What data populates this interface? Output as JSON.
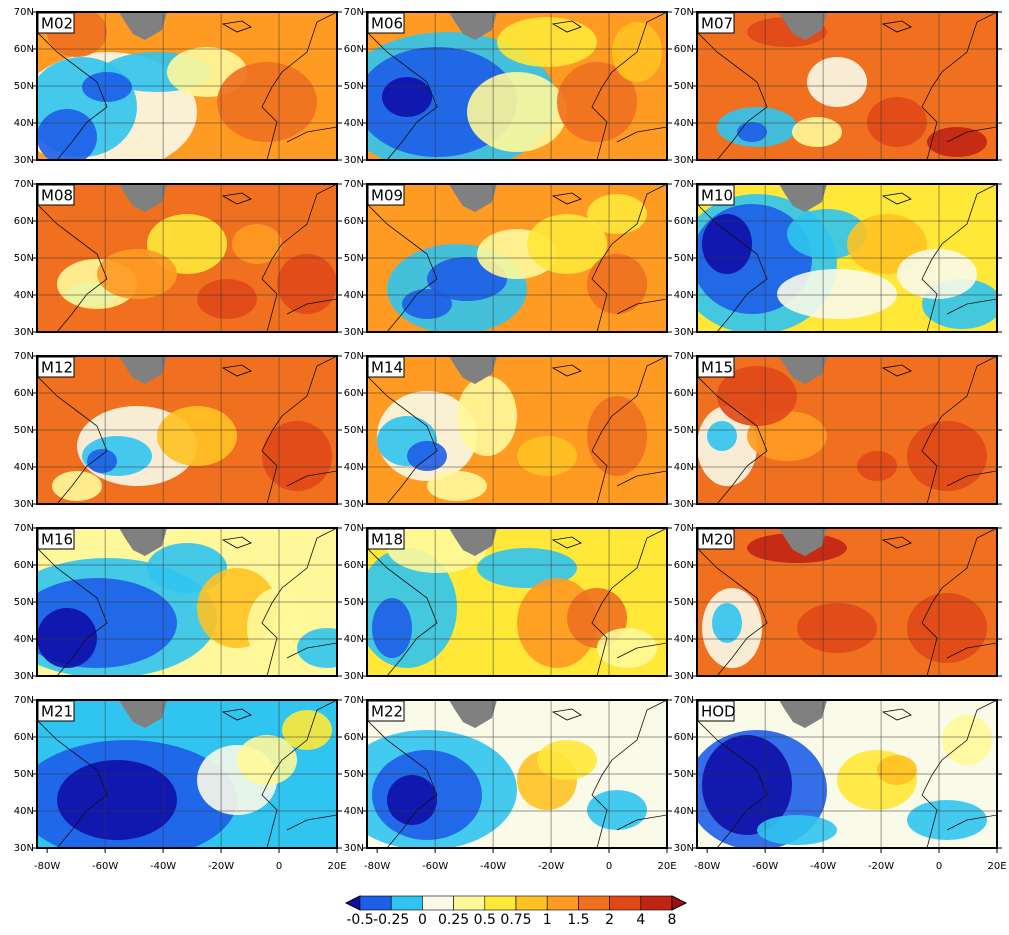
{
  "panels": [
    {
      "label": "M02"
    },
    {
      "label": "M06"
    },
    {
      "label": "M07"
    },
    {
      "label": "M08"
    },
    {
      "label": "M09"
    },
    {
      "label": "M10"
    },
    {
      "label": "M12"
    },
    {
      "label": "M14"
    },
    {
      "label": "M15"
    },
    {
      "label": "M16"
    },
    {
      "label": "M18"
    },
    {
      "label": "M20"
    },
    {
      "label": "M21"
    },
    {
      "label": "M22"
    },
    {
      "label": "HOD"
    }
  ],
  "lat_labels": [
    "70N",
    "60N",
    "50N",
    "40N",
    "30N"
  ],
  "lon_labels": [
    "-80W",
    "-60W",
    "-40W",
    "-20W",
    "0",
    "20E"
  ],
  "colorbar": {
    "labels": [
      "-0.5",
      "-0.25",
      "0",
      "0.25",
      "0.5",
      "0.75",
      "1",
      "1.5",
      "2",
      "4",
      "8"
    ],
    "colors": [
      "#1010a8",
      "#1e5ee8",
      "#30c4f0",
      "#fafae8",
      "#fff89a",
      "#ffe838",
      "#ffc222",
      "#ff9a22",
      "#f07020",
      "#e04818",
      "#c02414",
      "#a01010"
    ]
  }
}
